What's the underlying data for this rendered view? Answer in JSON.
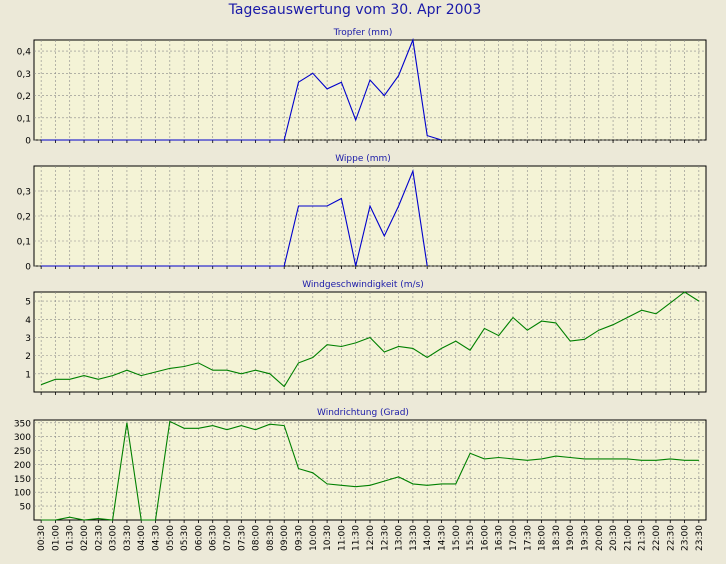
{
  "page_title": "Tagesauswertung vom 30. Apr 2003",
  "colors": {
    "background": "#ece9d8",
    "plot_background": "#f4f3d6",
    "grid": "#8a8a8a",
    "blue_series": "#0000cc",
    "green_series": "#008000",
    "title_text": "#1a1aa8",
    "panel_title_text": "#1a1aa8"
  },
  "x_tick_labels": [
    "00:30",
    "01:00",
    "01:30",
    "02:00",
    "02:30",
    "03:00",
    "03:30",
    "04:00",
    "04:30",
    "05:00",
    "05:30",
    "06:00",
    "06:30",
    "07:00",
    "07:30",
    "08:00",
    "08:30",
    "09:00",
    "09:30",
    "10:00",
    "10:30",
    "11:00",
    "11:30",
    "12:00",
    "12:30",
    "13:00",
    "13:30",
    "14:00",
    "14:30",
    "15:00",
    "15:30",
    "16:00",
    "16:30",
    "17:00",
    "17:30",
    "18:00",
    "18:30",
    "19:00",
    "19:30",
    "20:00",
    "20:30",
    "21:00",
    "21:30",
    "22:00",
    "22:30",
    "23:00",
    "23:30"
  ],
  "chart_data": [
    {
      "type": "line",
      "title": "Tropfer (mm)",
      "ylim": [
        0,
        0.45
      ],
      "yticks": [
        0,
        0.1,
        0.2,
        0.3,
        0.4
      ],
      "ytick_labels": [
        "0",
        "0,1",
        "0,2",
        "0,3",
        "0,4"
      ],
      "grid": true,
      "series": [
        {
          "color": "#0000cc",
          "values": [
            0,
            0,
            0,
            0,
            0,
            0,
            0,
            0,
            0,
            0,
            0,
            0,
            0,
            0,
            0,
            0,
            0,
            0,
            0.26,
            0.3,
            0.23,
            0.26,
            0.09,
            0.27,
            0.2,
            0.29,
            0.45,
            0.02,
            0,
            null,
            null,
            null,
            null,
            null,
            null,
            null,
            null,
            null,
            null,
            null,
            null,
            null,
            null,
            null,
            null,
            null,
            null
          ]
        }
      ]
    },
    {
      "type": "line",
      "title": "Wippe (mm)",
      "ylim": [
        0,
        0.4
      ],
      "yticks": [
        0,
        0.1,
        0.2,
        0.3
      ],
      "ytick_labels": [
        "0",
        "0,1",
        "0,2",
        "0,3"
      ],
      "grid": true,
      "series": [
        {
          "color": "#0000cc",
          "values": [
            0,
            0,
            0,
            0,
            0,
            0,
            0,
            0,
            0,
            0,
            0,
            0,
            0,
            0,
            0,
            0,
            0,
            0,
            0.24,
            0.24,
            0.24,
            0.27,
            0,
            0.24,
            0.12,
            0.24,
            0.38,
            0,
            null,
            null,
            null,
            null,
            null,
            null,
            null,
            null,
            null,
            null,
            null,
            null,
            null,
            null,
            null,
            null,
            null,
            null,
            null
          ]
        }
      ]
    },
    {
      "type": "line",
      "title": "Windgeschwindigkeit (m/s)",
      "ylim": [
        0,
        5.5
      ],
      "yticks": [
        1,
        2,
        3,
        4,
        5
      ],
      "ytick_labels": [
        "1",
        "2",
        "3",
        "4",
        "5"
      ],
      "grid": true,
      "series": [
        {
          "color": "#008000",
          "values": [
            0.4,
            0.7,
            0.7,
            0.9,
            0.7,
            0.9,
            1.2,
            0.9,
            1.1,
            1.3,
            1.4,
            1.6,
            1.2,
            1.2,
            1.0,
            1.2,
            1.0,
            0.3,
            1.6,
            1.9,
            2.6,
            2.5,
            2.7,
            3.0,
            2.2,
            2.5,
            2.4,
            1.9,
            2.4,
            2.8,
            2.3,
            3.5,
            3.1,
            4.1,
            3.4,
            3.9,
            3.8,
            2.8,
            2.9,
            3.4,
            3.7,
            4.1,
            4.5,
            4.3,
            4.9,
            5.5,
            5.0
          ]
        }
      ]
    },
    {
      "type": "line",
      "title": "Windrichtung (Grad)",
      "ylim": [
        0,
        360
      ],
      "yticks": [
        50,
        100,
        150,
        200,
        250,
        300,
        350
      ],
      "ytick_labels": [
        "50",
        "100",
        "150",
        "200",
        "250",
        "300",
        "350"
      ],
      "grid": true,
      "series": [
        {
          "color": "#008000",
          "values": [
            0,
            0,
            10,
            0,
            5,
            0,
            350,
            0,
            0,
            355,
            330,
            330,
            340,
            325,
            340,
            325,
            345,
            340,
            185,
            170,
            130,
            125,
            120,
            125,
            140,
            155,
            130,
            125,
            130,
            130,
            240,
            220,
            225,
            220,
            215,
            220,
            230,
            225,
            220,
            220,
            220,
            220,
            215,
            215,
            220,
            215,
            215
          ]
        }
      ]
    }
  ]
}
